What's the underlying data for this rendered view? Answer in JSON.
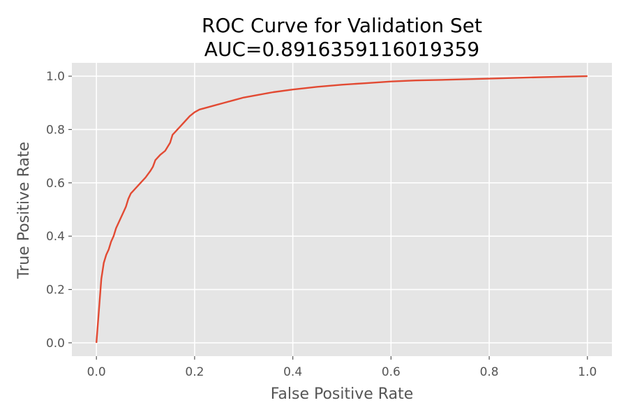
{
  "chart_data": {
    "type": "line",
    "title": "ROC Curve for Validation Set",
    "subtitle": "AUC=0.8916359116019359",
    "xlabel": "False Positive Rate",
    "ylabel": "True Positive Rate",
    "xlim": [
      -0.05,
      1.05
    ],
    "ylim": [
      -0.05,
      1.05
    ],
    "xticks": [
      0.0,
      0.2,
      0.4,
      0.6,
      0.8,
      1.0
    ],
    "yticks": [
      0.0,
      0.2,
      0.4,
      0.6,
      0.8,
      1.0
    ],
    "xtick_labels": [
      "0.0",
      "0.2",
      "0.4",
      "0.6",
      "0.8",
      "1.0"
    ],
    "ytick_labels": [
      "0.0",
      "0.2",
      "0.4",
      "0.6",
      "0.8",
      "1.0"
    ],
    "grid": true,
    "legend": "none",
    "colors": {
      "background": "#e5e5e5",
      "line": "#e24a33",
      "grid": "#ffffff"
    },
    "series": [
      {
        "x": [
          0.0,
          0.005,
          0.01,
          0.015,
          0.02,
          0.025,
          0.03,
          0.035,
          0.04,
          0.045,
          0.05,
          0.055,
          0.06,
          0.065,
          0.07,
          0.075,
          0.08,
          0.09,
          0.1,
          0.11,
          0.115,
          0.12,
          0.13,
          0.14,
          0.145,
          0.15,
          0.155,
          0.16,
          0.17,
          0.18,
          0.19,
          0.2,
          0.21,
          0.22,
          0.24,
          0.26,
          0.28,
          0.3,
          0.33,
          0.36,
          0.4,
          0.45,
          0.5,
          0.55,
          0.6,
          0.65,
          0.7,
          0.8,
          0.9,
          1.0
        ],
        "y": [
          0.0,
          0.12,
          0.24,
          0.3,
          0.33,
          0.35,
          0.38,
          0.4,
          0.43,
          0.45,
          0.47,
          0.49,
          0.51,
          0.54,
          0.56,
          0.57,
          0.58,
          0.6,
          0.62,
          0.645,
          0.66,
          0.685,
          0.705,
          0.72,
          0.735,
          0.75,
          0.78,
          0.79,
          0.81,
          0.83,
          0.85,
          0.865,
          0.875,
          0.88,
          0.89,
          0.9,
          0.91,
          0.92,
          0.93,
          0.94,
          0.95,
          0.96,
          0.968,
          0.974,
          0.98,
          0.984,
          0.986,
          0.991,
          0.996,
          1.0
        ]
      }
    ]
  }
}
